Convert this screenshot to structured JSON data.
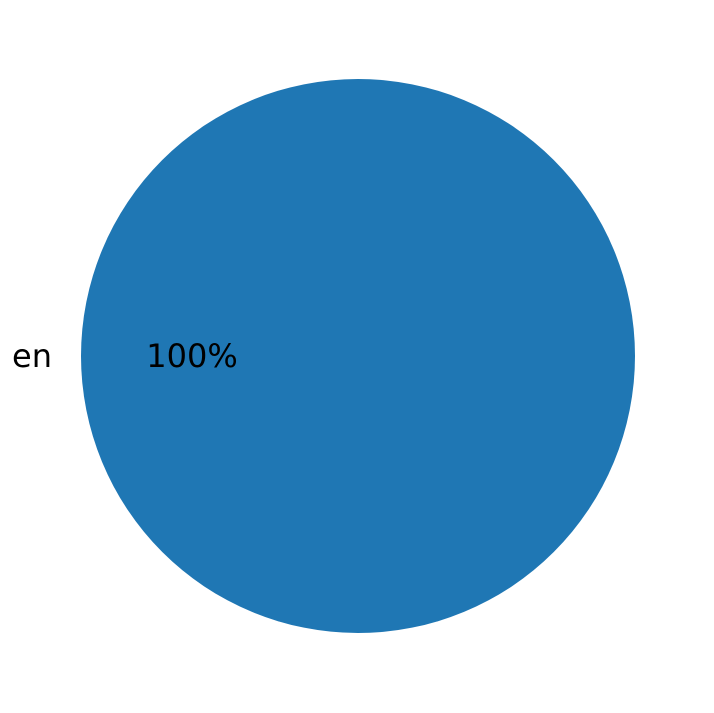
{
  "chart_data": {
    "type": "pie",
    "categories": [
      "en"
    ],
    "values": [
      100
    ],
    "data_labels": [
      "100%"
    ],
    "colors": [
      "#1f77b4"
    ],
    "title": "",
    "legend": "none"
  }
}
